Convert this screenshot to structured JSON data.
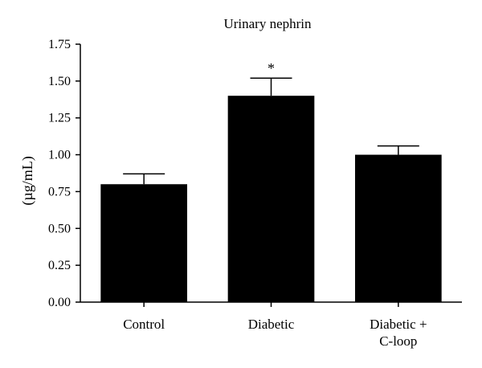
{
  "chart_data": {
    "type": "bar",
    "title": "Urinary nephrin",
    "xlabel": "",
    "ylabel": "(µg/mL)",
    "categories": [
      [
        "Control"
      ],
      [
        "Diabetic"
      ],
      [
        "Diabetic +",
        "C-loop"
      ]
    ],
    "values": [
      0.8,
      1.4,
      1.0
    ],
    "errors": [
      0.07,
      0.12,
      0.06
    ],
    "annotations": [
      "",
      "*",
      ""
    ],
    "ylim": [
      0,
      1.75
    ],
    "yticks": [
      "0.00",
      "0.25",
      "0.50",
      "0.75",
      "1.00",
      "1.25",
      "1.50",
      "1.75"
    ],
    "bar_color": "#000000",
    "grid": false
  }
}
